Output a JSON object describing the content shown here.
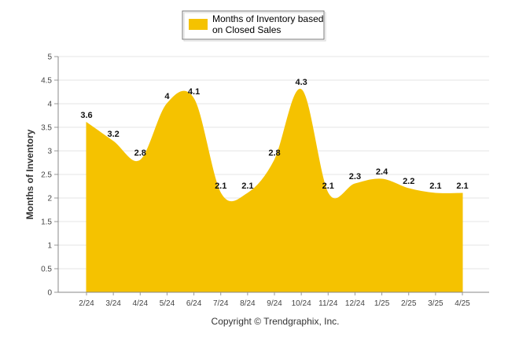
{
  "chart_data": {
    "type": "area",
    "categories": [
      "2/24",
      "3/24",
      "4/24",
      "5/24",
      "6/24",
      "7/24",
      "8/24",
      "9/24",
      "10/24",
      "11/24",
      "12/24",
      "1/25",
      "2/25",
      "3/25",
      "4/25"
    ],
    "series": [
      {
        "name": "Months of Inventory based on Closed Sales",
        "values": [
          3.6,
          3.2,
          2.8,
          4,
          4.1,
          2.1,
          2.1,
          2.8,
          4.3,
          2.1,
          2.3,
          2.4,
          2.2,
          2.1,
          2.1
        ],
        "color": "#f5c200"
      }
    ],
    "ylabel": "Months of Inventory",
    "ylim": [
      0,
      5
    ],
    "yticks": [
      "0",
      "0.5",
      "1",
      "1.5",
      "2",
      "2.5",
      "3",
      "3.5",
      "4",
      "4.5",
      "5"
    ],
    "grid": true,
    "legend": "top-center",
    "legend_lines": [
      "Months of Inventory based",
      "on Closed Sales"
    ]
  },
  "footer": "Copyright © Trendgraphix, Inc."
}
